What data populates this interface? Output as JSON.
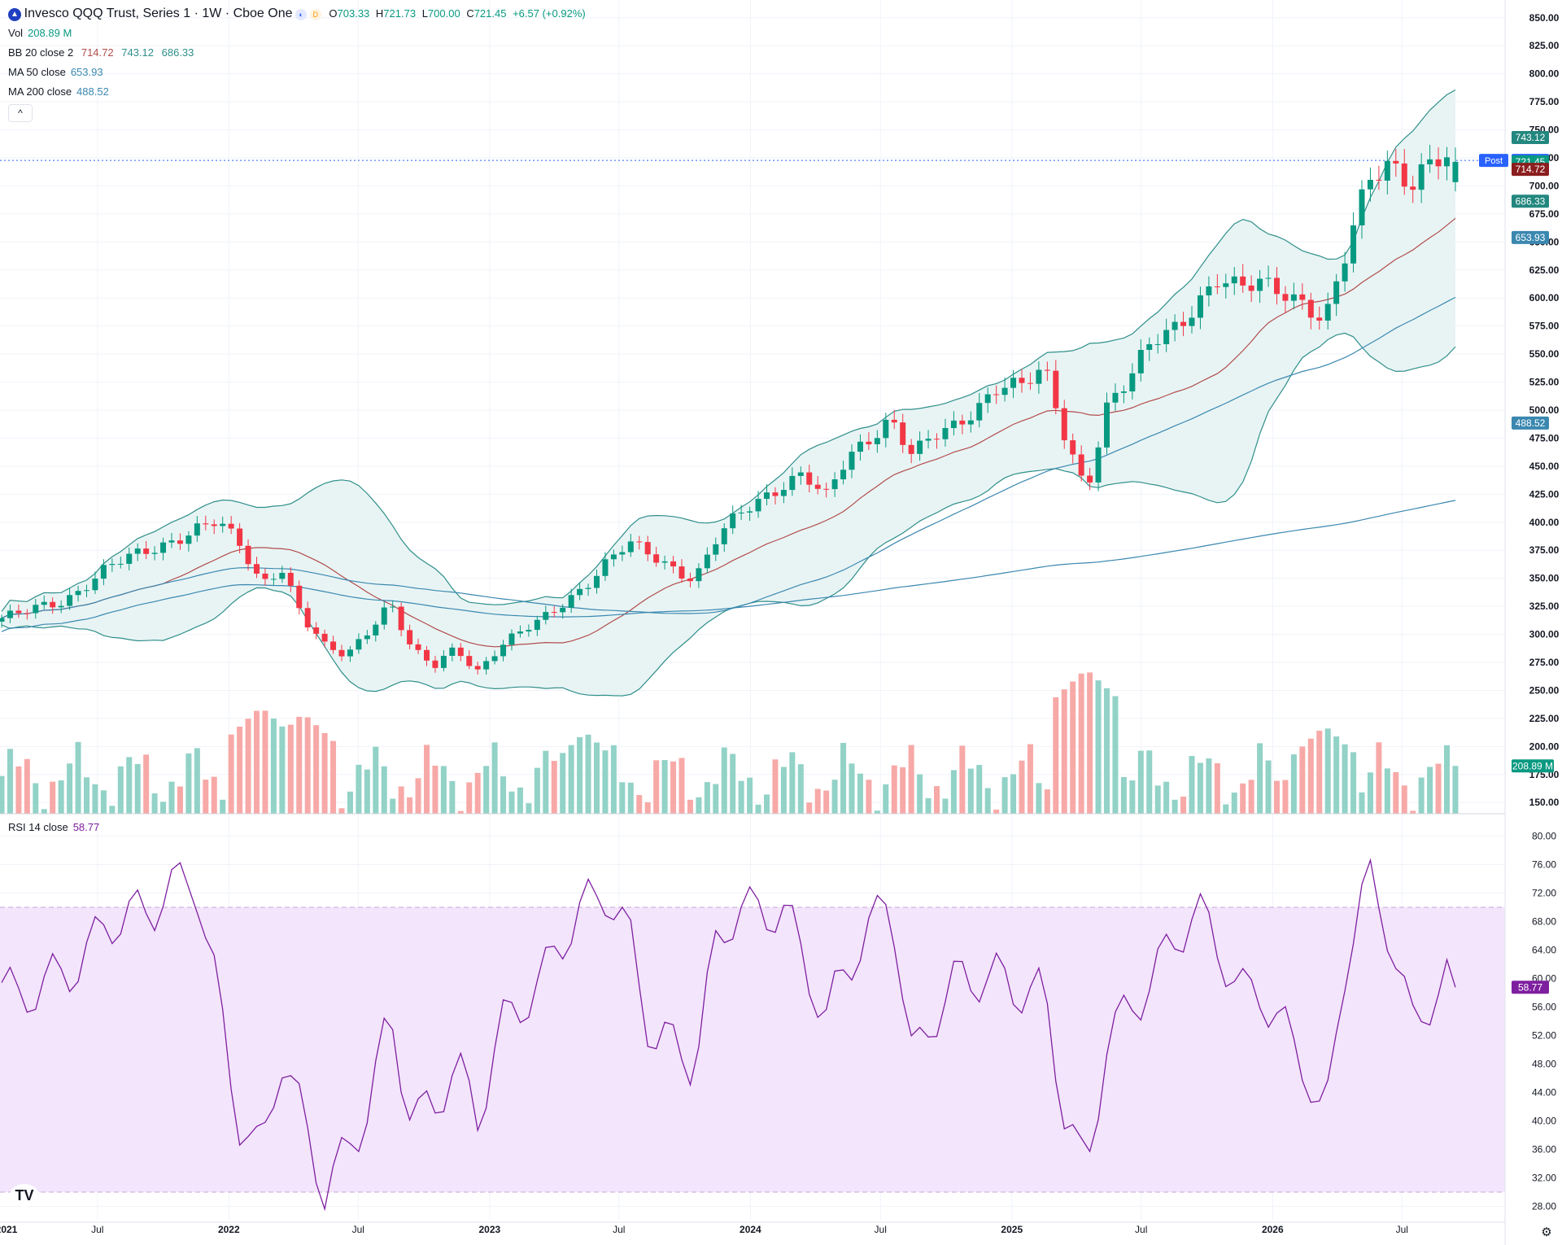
{
  "header": {
    "symbol_icon": "invesco-logo-icon",
    "title": "Invesco QQQ Trust, Series 1 · 1W · Cboe One",
    "badge_d": "D",
    "ohlc": {
      "o_label": "O",
      "o": "703.33",
      "h_label": "H",
      "h": "721.73",
      "l_label": "L",
      "l": "700.00",
      "c_label": "C",
      "c": "721.45",
      "change": "+6.57 (+0.92%)"
    }
  },
  "legend": {
    "vol": {
      "label": "Vol",
      "value": "208.89 M"
    },
    "bb": {
      "label": "BB 20 close 2",
      "basis": "714.72",
      "upper": "743.12",
      "lower": "686.33"
    },
    "ma50": {
      "label": "MA 50 close",
      "value": "653.93"
    },
    "ma200": {
      "label": "MA 200 close",
      "value": "488.52"
    },
    "rsi": {
      "label": "RSI 14 close",
      "value": "58.77"
    }
  },
  "price_badges": {
    "bb_upper": "743.12",
    "post_label": "Post",
    "post": "722.70",
    "close": "721.45",
    "bb_basis": "714.72",
    "bb_lower": "686.33",
    "ma50": "653.93",
    "ma200": "488.52",
    "volume": "208.89 M",
    "rsi": "58.77"
  },
  "colors": {
    "up": "#089981",
    "down": "#f23645",
    "up_vol": "#92d2c7",
    "down_vol": "#f7a9a7",
    "bb_line": "#2f8f8a",
    "bb_basis": "#b24c4c",
    "bb_fill": "#e8f4f4",
    "ma50": "#3a88b0",
    "ma200": "#3a88b0",
    "rsi": "#7e1fa0",
    "rsi_band": "#f3e5fc",
    "post": "#2962ff",
    "grid": "#f0f3fa"
  },
  "chart_data": [
    {
      "type": "candlestick",
      "title": "Invesco QQQ Trust, Series 1 · 1W · Cboe One",
      "price_axis_ticks": [
        "150.00",
        "175.00",
        "200.00",
        "225.00",
        "250.00",
        "275.00",
        "300.00",
        "325.00",
        "350.00",
        "375.00",
        "400.00",
        "425.00",
        "450.00",
        "475.00",
        "500.00",
        "525.00",
        "550.00",
        "575.00",
        "600.00",
        "625.00",
        "650.00",
        "675.00",
        "700.00",
        "725.00",
        "750.00",
        "775.00",
        "800.00",
        "825.00",
        "850.00"
      ],
      "time_axis_labels": [
        "2021",
        "Jul",
        "2022",
        "Jul",
        "2023",
        "Jul",
        "2024",
        "Jul",
        "2025",
        "Jul",
        "2026",
        "Jul"
      ],
      "ylim": [
        140,
        860
      ],
      "last_ohlc": {
        "open": 703.33,
        "high": 721.73,
        "low": 700.0,
        "close": 721.45
      },
      "post_market_price": 722.7,
      "close_path": [
        {
          "x": "2021-01",
          "y": 310
        },
        {
          "x": "2021-03",
          "y": 318
        },
        {
          "x": "2021-05",
          "y": 330
        },
        {
          "x": "2021-07",
          "y": 360
        },
        {
          "x": "2021-09",
          "y": 375
        },
        {
          "x": "2021-11",
          "y": 395
        },
        {
          "x": "2021-12",
          "y": 400
        },
        {
          "x": "2022-01",
          "y": 380
        },
        {
          "x": "2022-02",
          "y": 345
        },
        {
          "x": "2022-03",
          "y": 362
        },
        {
          "x": "2022-04",
          "y": 315
        },
        {
          "x": "2022-05",
          "y": 288
        },
        {
          "x": "2022-06",
          "y": 280
        },
        {
          "x": "2022-08",
          "y": 330
        },
        {
          "x": "2022-09",
          "y": 285
        },
        {
          "x": "2022-10",
          "y": 270
        },
        {
          "x": "2022-11",
          "y": 288
        },
        {
          "x": "2022-12",
          "y": 268
        },
        {
          "x": "2023-01",
          "y": 290
        },
        {
          "x": "2023-03",
          "y": 312
        },
        {
          "x": "2023-05",
          "y": 345
        },
        {
          "x": "2023-06",
          "y": 365
        },
        {
          "x": "2023-07",
          "y": 380
        },
        {
          "x": "2023-08",
          "y": 370
        },
        {
          "x": "2023-09",
          "y": 360
        },
        {
          "x": "2023-10",
          "y": 350
        },
        {
          "x": "2023-11",
          "y": 385
        },
        {
          "x": "2023-12",
          "y": 405
        },
        {
          "x": "2024-02",
          "y": 435
        },
        {
          "x": "2024-03",
          "y": 445
        },
        {
          "x": "2024-04",
          "y": 420
        },
        {
          "x": "2024-05",
          "y": 455
        },
        {
          "x": "2024-07",
          "y": 495
        },
        {
          "x": "2024-08",
          "y": 460
        },
        {
          "x": "2024-09",
          "y": 475
        },
        {
          "x": "2024-10",
          "y": 485
        },
        {
          "x": "2024-12",
          "y": 525
        },
        {
          "x": "2025-01",
          "y": 520
        },
        {
          "x": "2025-02",
          "y": 535
        },
        {
          "x": "2025-03",
          "y": 480
        },
        {
          "x": "2025-04",
          "y": 430
        },
        {
          "x": "2025-05",
          "y": 505
        },
        {
          "x": "2025-06",
          "y": 525
        },
        {
          "x": "2025-07",
          "y": 560
        },
        {
          "x": "2025-08",
          "y": 575
        },
        {
          "x": "2025-09",
          "y": 595
        },
        {
          "x": "2025-10",
          "y": 615
        },
        {
          "x": "2025-11",
          "y": 605
        },
        {
          "x": "2025-12",
          "y": 615
        },
        {
          "x": "2026-01",
          "y": 610
        },
        {
          "x": "2026-02",
          "y": 595
        },
        {
          "x": "2026-03",
          "y": 575
        },
        {
          "x": "2026-04",
          "y": 640
        },
        {
          "x": "2026-05",
          "y": 710
        },
        {
          "x": "2026-06",
          "y": 725
        },
        {
          "x": "2026-07",
          "y": 700
        },
        {
          "x": "2026-08",
          "y": 720
        },
        {
          "x": "2026-09",
          "y": 721.45
        }
      ],
      "indicators": {
        "bb_20_close_2": {
          "basis": 714.72,
          "upper": 743.12,
          "lower": 686.33
        },
        "ma_50_close": 653.93,
        "ma_200_close": 488.52
      }
    },
    {
      "type": "bar",
      "title": "Vol",
      "last_value": "208.89 M",
      "ylim": [
        150,
        260
      ],
      "spikes": [
        {
          "x": "2022-02",
          "y": 235
        },
        {
          "x": "2022-04",
          "y": 230
        },
        {
          "x": "2023-05",
          "y": 215
        },
        {
          "x": "2025-04",
          "y": 265
        },
        {
          "x": "2026-03",
          "y": 220
        }
      ]
    },
    {
      "type": "line",
      "title": "RSI 14 close",
      "last_value": 58.77,
      "axis_ticks": [
        "28.00",
        "32.00",
        "36.00",
        "40.00",
        "44.00",
        "48.00",
        "52.00",
        "56.00",
        "60.00",
        "64.00",
        "68.00",
        "72.00",
        "76.00",
        "80.00"
      ],
      "ylim": [
        26,
        82
      ],
      "bands": [
        30,
        70
      ],
      "points": [
        {
          "x": "2021-01",
          "y": 65
        },
        {
          "x": "2021-03",
          "y": 55
        },
        {
          "x": "2021-05",
          "y": 60
        },
        {
          "x": "2021-07",
          "y": 70
        },
        {
          "x": "2021-09",
          "y": 68
        },
        {
          "x": "2021-11",
          "y": 74
        },
        {
          "x": "2021-12",
          "y": 60
        },
        {
          "x": "2022-01",
          "y": 42
        },
        {
          "x": "2022-02",
          "y": 35
        },
        {
          "x": "2022-03",
          "y": 48
        },
        {
          "x": "2022-04",
          "y": 38
        },
        {
          "x": "2022-05",
          "y": 30
        },
        {
          "x": "2022-07",
          "y": 44
        },
        {
          "x": "2022-08",
          "y": 55
        },
        {
          "x": "2022-09",
          "y": 38
        },
        {
          "x": "2022-10",
          "y": 40
        },
        {
          "x": "2022-11",
          "y": 48
        },
        {
          "x": "2022-12",
          "y": 42
        },
        {
          "x": "2023-01",
          "y": 55
        },
        {
          "x": "2023-03",
          "y": 58
        },
        {
          "x": "2023-05",
          "y": 70
        },
        {
          "x": "2023-06",
          "y": 74
        },
        {
          "x": "2023-07",
          "y": 68
        },
        {
          "x": "2023-08",
          "y": 52
        },
        {
          "x": "2023-10",
          "y": 46
        },
        {
          "x": "2023-11",
          "y": 65
        },
        {
          "x": "2023-12",
          "y": 72
        },
        {
          "x": "2024-02",
          "y": 70
        },
        {
          "x": "2024-04",
          "y": 52
        },
        {
          "x": "2024-05",
          "y": 62
        },
        {
          "x": "2024-07",
          "y": 74
        },
        {
          "x": "2024-08",
          "y": 48
        },
        {
          "x": "2024-10",
          "y": 58
        },
        {
          "x": "2024-12",
          "y": 62
        },
        {
          "x": "2025-02",
          "y": 58
        },
        {
          "x": "2025-03",
          "y": 40
        },
        {
          "x": "2025-04",
          "y": 30
        },
        {
          "x": "2025-05",
          "y": 52
        },
        {
          "x": "2025-07",
          "y": 62
        },
        {
          "x": "2025-09",
          "y": 68
        },
        {
          "x": "2025-11",
          "y": 58
        },
        {
          "x": "2025-12",
          "y": 60
        },
        {
          "x": "2026-01",
          "y": 55
        },
        {
          "x": "2026-02",
          "y": 48
        },
        {
          "x": "2026-03",
          "y": 37
        },
        {
          "x": "2026-04",
          "y": 62
        },
        {
          "x": "2026-05",
          "y": 74
        },
        {
          "x": "2026-06",
          "y": 68
        },
        {
          "x": "2026-07",
          "y": 55
        },
        {
          "x": "2026-08",
          "y": 58
        },
        {
          "x": "2026-09",
          "y": 58.77
        }
      ]
    }
  ]
}
